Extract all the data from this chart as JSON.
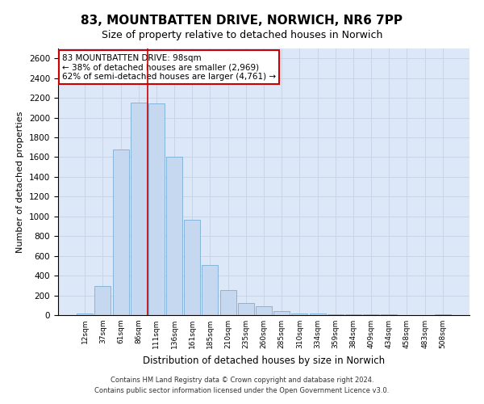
{
  "title_line1": "83, MOUNTBATTEN DRIVE, NORWICH, NR6 7PP",
  "title_line2": "Size of property relative to detached houses in Norwich",
  "xlabel": "Distribution of detached houses by size in Norwich",
  "ylabel": "Number of detached properties",
  "bar_labels": [
    "12sqm",
    "37sqm",
    "61sqm",
    "86sqm",
    "111sqm",
    "136sqm",
    "161sqm",
    "185sqm",
    "210sqm",
    "235sqm",
    "260sqm",
    "285sqm",
    "310sqm",
    "334sqm",
    "359sqm",
    "384sqm",
    "409sqm",
    "434sqm",
    "458sqm",
    "483sqm",
    "508sqm"
  ],
  "bar_values": [
    20,
    295,
    1680,
    2150,
    2140,
    1600,
    965,
    505,
    250,
    120,
    90,
    40,
    20,
    20,
    8,
    12,
    5,
    8,
    4,
    0,
    12
  ],
  "bar_color": "#c5d8f0",
  "bar_edge_color": "#7aaed6",
  "vline_x": 3.5,
  "vline_color": "#cc0000",
  "annotation_text": "83 MOUNTBATTEN DRIVE: 98sqm\n← 38% of detached houses are smaller (2,969)\n62% of semi-detached houses are larger (4,761) →",
  "annotation_box_color": "#ffffff",
  "annotation_box_edge": "#cc0000",
  "ylim": [
    0,
    2700
  ],
  "yticks": [
    0,
    200,
    400,
    600,
    800,
    1000,
    1200,
    1400,
    1600,
    1800,
    2000,
    2200,
    2400,
    2600
  ],
  "grid_color": "#c8d4e8",
  "background_color": "#dce8f8",
  "footer_line1": "Contains HM Land Registry data © Crown copyright and database right 2024.",
  "footer_line2": "Contains public sector information licensed under the Open Government Licence v3.0."
}
